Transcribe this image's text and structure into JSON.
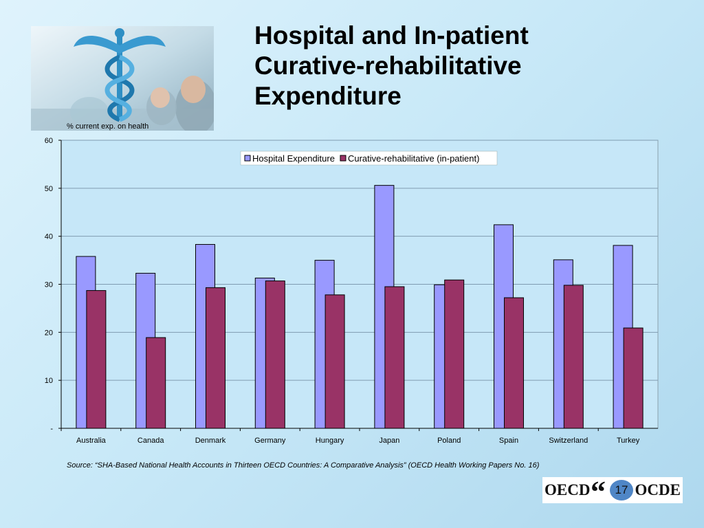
{
  "slide": {
    "title_lines": [
      "Hospital and In-patient",
      "Curative-rehabilitative",
      "Expenditure"
    ],
    "unit_label": "% current exp. on health",
    "source": "Source: “SHA-Based National Health Accounts in Thirteen OECD Countries: A Comparative Analysis” (OECD Health Working Papers No. 16)",
    "page_number": "17",
    "logo": {
      "left": "OECD",
      "right": "OCDE"
    }
  },
  "colors": {
    "hospital": "#9999ff",
    "curative": "#993366",
    "bar_border": "#000000",
    "plot_bg": "#c6e7f8",
    "gridline": "#7f9bb0"
  },
  "chart_data": {
    "type": "bar",
    "categories": [
      "Australia",
      "Canada",
      "Denmark",
      "Germany",
      "Hungary",
      "Japan",
      "Poland",
      "Spain",
      "Switzerland",
      "Turkey"
    ],
    "series": [
      {
        "name": "Hospital Expenditure",
        "values": [
          35.8,
          32.3,
          38.3,
          31.3,
          35.0,
          50.6,
          29.9,
          42.4,
          35.1,
          38.1
        ]
      },
      {
        "name": "Curative-rehabilitative (in-patient)",
        "values": [
          28.7,
          18.9,
          29.3,
          30.7,
          27.8,
          29.5,
          30.9,
          27.2,
          29.8,
          20.9
        ]
      }
    ],
    "ylim": [
      0,
      60
    ],
    "yticks": [
      0,
      10,
      20,
      30,
      40,
      50,
      60
    ],
    "ytick_labels": [
      "-",
      "10",
      "20",
      "30",
      "40",
      "50",
      "60"
    ],
    "ylabel": "% current exp. on health",
    "xlabel": "",
    "title": "",
    "grid": true,
    "legend_position": "top-right"
  }
}
